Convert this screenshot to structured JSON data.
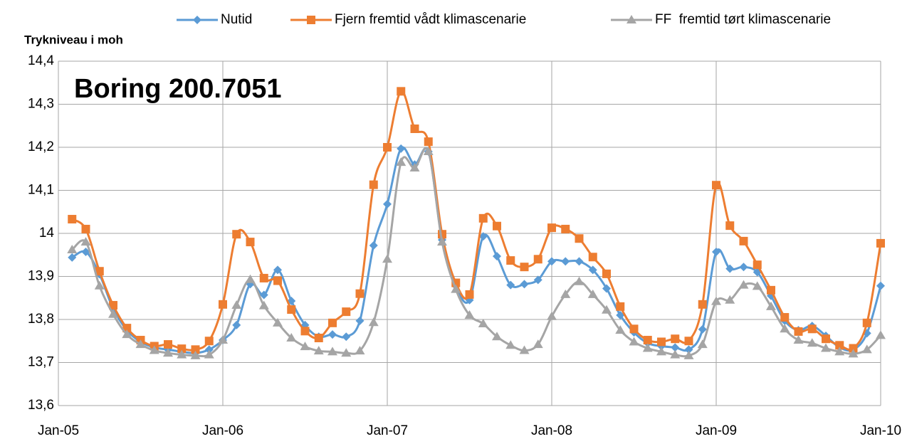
{
  "chart_data": {
    "type": "line",
    "y_label": "Trykniveau i moh",
    "annotation": "Boring 200.7051",
    "x": [
      "2005-02",
      "2005-03",
      "2005-04",
      "2005-05",
      "2005-06",
      "2005-07",
      "2005-08",
      "2005-09",
      "2005-10",
      "2005-11",
      "2005-12",
      "2006-01",
      "2006-02",
      "2006-03",
      "2006-04",
      "2006-05",
      "2006-06",
      "2006-07",
      "2006-08",
      "2006-09",
      "2006-10",
      "2006-11",
      "2006-12",
      "2007-01",
      "2007-02",
      "2007-03",
      "2007-04",
      "2007-05",
      "2007-06",
      "2007-07",
      "2007-08",
      "2007-09",
      "2007-10",
      "2007-11",
      "2007-12",
      "2008-01",
      "2008-02",
      "2008-03",
      "2008-04",
      "2008-05",
      "2008-06",
      "2008-07",
      "2008-08",
      "2008-09",
      "2008-10",
      "2008-11",
      "2008-12",
      "2009-01",
      "2009-02",
      "2009-03",
      "2009-04",
      "2009-05",
      "2009-06",
      "2009-07",
      "2009-08",
      "2009-09",
      "2009-10",
      "2009-11",
      "2009-12",
      "2010-01"
    ],
    "series": [
      {
        "name": "Nutid",
        "color": "#5b9bd5",
        "marker": "diamond",
        "values": [
          13.944,
          13.957,
          13.905,
          13.825,
          13.775,
          13.748,
          13.735,
          13.73,
          13.725,
          13.722,
          13.73,
          13.752,
          13.787,
          13.882,
          13.857,
          13.915,
          13.843,
          13.787,
          13.76,
          13.765,
          13.76,
          13.797,
          13.972,
          14.068,
          14.197,
          14.16,
          14.19,
          13.985,
          13.878,
          13.845,
          13.993,
          13.947,
          13.88,
          13.882,
          13.892,
          13.935,
          13.935,
          13.935,
          13.915,
          13.872,
          13.81,
          13.77,
          13.745,
          13.738,
          13.735,
          13.73,
          13.777,
          13.957,
          13.918,
          13.922,
          13.91,
          13.855,
          13.797,
          13.775,
          13.785,
          13.762,
          13.735,
          13.73,
          13.768,
          13.878
        ]
      },
      {
        "name": "Fjern fremtid vådt klimascenarie",
        "color": "#ed7d31",
        "marker": "square",
        "values": [
          14.033,
          14.01,
          13.912,
          13.833,
          13.78,
          13.752,
          13.738,
          13.742,
          13.732,
          13.73,
          13.75,
          13.835,
          13.998,
          13.98,
          13.896,
          13.89,
          13.823,
          13.773,
          13.757,
          13.792,
          13.818,
          13.86,
          14.113,
          14.2,
          14.33,
          14.243,
          14.213,
          13.998,
          13.885,
          13.858,
          14.035,
          14.017,
          13.937,
          13.922,
          13.94,
          14.013,
          14.01,
          13.988,
          13.945,
          13.906,
          13.83,
          13.778,
          13.752,
          13.748,
          13.755,
          13.75,
          13.835,
          14.112,
          14.018,
          13.982,
          13.927,
          13.868,
          13.805,
          13.772,
          13.778,
          13.755,
          13.74,
          13.733,
          13.792,
          13.977
        ]
      },
      {
        "name": "FF  fremtid tørt klimascenarie",
        "color": "#a5a5a5",
        "marker": "triangle",
        "values": [
          13.962,
          13.98,
          13.878,
          13.812,
          13.765,
          13.742,
          13.728,
          13.722,
          13.718,
          13.716,
          13.718,
          13.752,
          13.833,
          13.893,
          13.832,
          13.792,
          13.757,
          13.737,
          13.727,
          13.725,
          13.722,
          13.727,
          13.793,
          13.94,
          14.165,
          14.152,
          14.19,
          13.98,
          13.87,
          13.81,
          13.79,
          13.76,
          13.74,
          13.728,
          13.742,
          13.807,
          13.858,
          13.888,
          13.858,
          13.822,
          13.775,
          13.748,
          13.733,
          13.725,
          13.718,
          13.716,
          13.742,
          13.842,
          13.845,
          13.88,
          13.877,
          13.83,
          13.778,
          13.752,
          13.745,
          13.733,
          13.725,
          13.72,
          13.73,
          13.763
        ]
      }
    ],
    "xlim": [
      "2005-01",
      "2010-01"
    ],
    "xticks": [
      {
        "value": "2005-01",
        "label": "Jan-05"
      },
      {
        "value": "2006-01",
        "label": "Jan-06"
      },
      {
        "value": "2007-01",
        "label": "Jan-07"
      },
      {
        "value": "2008-01",
        "label": "Jan-08"
      },
      {
        "value": "2009-01",
        "label": "Jan-09"
      },
      {
        "value": "2010-01",
        "label": "Jan-10"
      }
    ],
    "ylim": [
      13.6,
      14.4
    ],
    "yticks": [
      {
        "value": 13.6,
        "label": "13,6"
      },
      {
        "value": 13.7,
        "label": "13,7"
      },
      {
        "value": 13.8,
        "label": "13,8"
      },
      {
        "value": 13.9,
        "label": "13,9"
      },
      14,
      {
        "value": 14.1,
        "label": "14,1"
      },
      {
        "value": 14.2,
        "label": "14,2"
      },
      {
        "value": 14.3,
        "label": "14,3"
      },
      {
        "value": 14.4,
        "label": "14,4"
      }
    ],
    "grid": true,
    "legend": "top"
  }
}
